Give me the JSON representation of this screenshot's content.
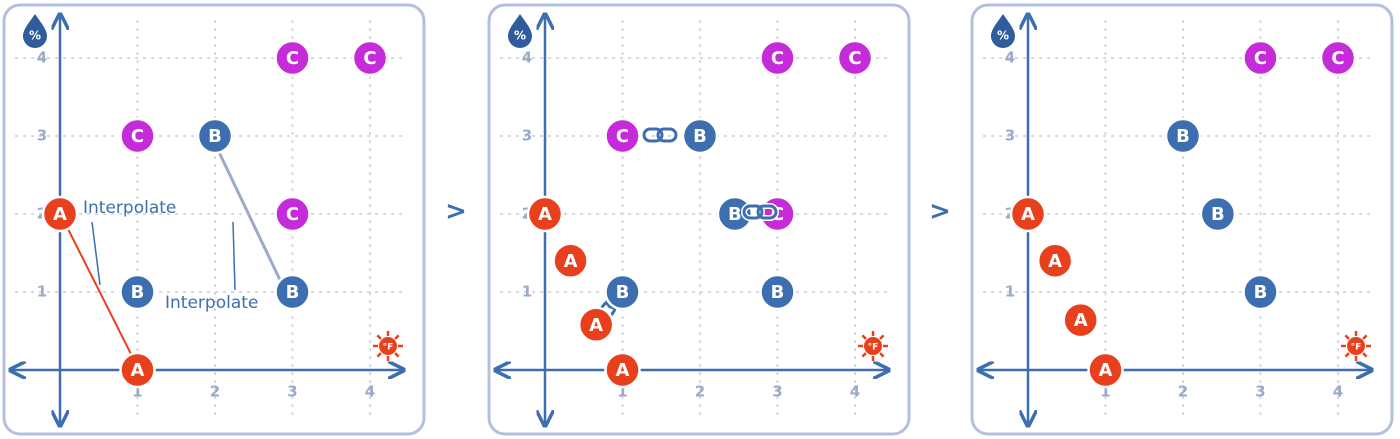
{
  "panels": [
    {
      "y_icon": "%",
      "x_icon": "°F",
      "x_ticks": [
        1,
        2,
        3,
        4
      ],
      "y_ticks": [
        1,
        2,
        3,
        4
      ],
      "points": [
        {
          "label": "C",
          "x": 3,
          "y": 4
        },
        {
          "label": "C",
          "x": 4,
          "y": 4
        },
        {
          "label": "C",
          "x": 1,
          "y": 3
        },
        {
          "label": "C",
          "x": 3,
          "y": 2
        },
        {
          "label": "B",
          "x": 2,
          "y": 3
        },
        {
          "label": "B",
          "x": 1,
          "y": 1
        },
        {
          "label": "B",
          "x": 3,
          "y": 1
        },
        {
          "label": "A",
          "x": 0,
          "y": 2
        },
        {
          "label": "A",
          "x": 1,
          "y": 0
        }
      ],
      "annotations": [
        "Interpolate",
        "Interpolate"
      ]
    },
    {
      "y_icon": "%",
      "x_icon": "°F",
      "x_ticks": [
        1,
        2,
        3,
        4
      ],
      "y_ticks": [
        1,
        2,
        3,
        4
      ],
      "points": [
        {
          "label": "C",
          "x": 3,
          "y": 4
        },
        {
          "label": "C",
          "x": 4,
          "y": 4
        },
        {
          "label": "C",
          "x": 1,
          "y": 3
        },
        {
          "label": "B",
          "x": 2,
          "y": 3
        },
        {
          "label": "C",
          "x": 3,
          "y": 2
        },
        {
          "label": "B",
          "x": 2.45,
          "y": 2
        },
        {
          "label": "B",
          "x": 3,
          "y": 1
        },
        {
          "label": "B",
          "x": 1,
          "y": 1
        },
        {
          "label": "A",
          "x": 0,
          "y": 2
        },
        {
          "label": "A",
          "x": 0.33,
          "y": 1.4
        },
        {
          "label": "A",
          "x": 0.66,
          "y": 0.58
        },
        {
          "label": "A",
          "x": 1,
          "y": 0
        }
      ],
      "annotations": []
    },
    {
      "y_icon": "%",
      "x_icon": "°F",
      "x_ticks": [
        1,
        2,
        3,
        4
      ],
      "y_ticks": [
        1,
        2,
        3,
        4
      ],
      "points": [
        {
          "label": "C",
          "x": 3,
          "y": 4
        },
        {
          "label": "C",
          "x": 4,
          "y": 4
        },
        {
          "label": "B",
          "x": 2,
          "y": 3
        },
        {
          "label": "B",
          "x": 2.45,
          "y": 2
        },
        {
          "label": "B",
          "x": 3,
          "y": 1
        },
        {
          "label": "A",
          "x": 0,
          "y": 2
        },
        {
          "label": "A",
          "x": 0.35,
          "y": 1.4
        },
        {
          "label": "A",
          "x": 0.68,
          "y": 0.64
        },
        {
          "label": "A",
          "x": 1,
          "y": 0
        }
      ],
      "annotations": []
    }
  ],
  "separators": [
    ">",
    ">"
  ]
}
